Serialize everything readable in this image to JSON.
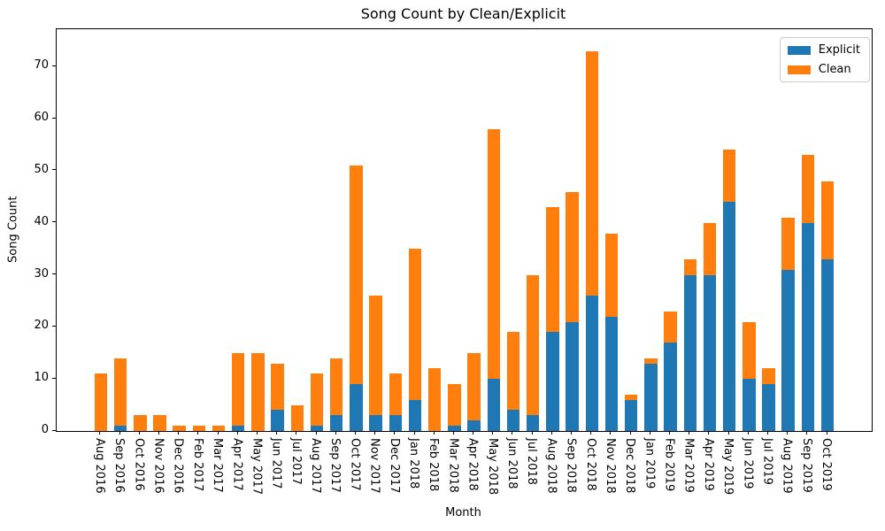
{
  "page": {
    "background": "#ffffff"
  },
  "chart_data": {
    "type": "bar",
    "stacked": true,
    "title": "Song Count by Clean/Explicit",
    "xlabel": "Month",
    "ylabel": "Song Count",
    "categories": [
      "Aug 2016",
      "Sep 2016",
      "Oct 2016",
      "Nov 2016",
      "Dec 2016",
      "Feb 2017",
      "Mar 2017",
      "Apr 2017",
      "May 2017",
      "Jun 2017",
      "Jul 2017",
      "Aug 2017",
      "Sep 2017",
      "Oct 2017",
      "Nov 2017",
      "Dec 2017",
      "Jan 2018",
      "Feb 2018",
      "Mar 2018",
      "Apr 2018",
      "May 2018",
      "Jun 2018",
      "Jul 2018",
      "Aug 2018",
      "Sep 2018",
      "Oct 2018",
      "Nov 2018",
      "Dec 2018",
      "Jan 2019",
      "Feb 2019",
      "Mar 2019",
      "Apr 2019",
      "May 2019",
      "Jun 2019",
      "Jul 2019",
      "Aug 2019",
      "Sep 2019",
      "Oct 2019"
    ],
    "series": [
      {
        "name": "Explicit",
        "color": "#1f77b4",
        "values": [
          0,
          1,
          0,
          0,
          0,
          0,
          0,
          1,
          0,
          4,
          0,
          1,
          3,
          9,
          3,
          3,
          6,
          0,
          1,
          2,
          10,
          4,
          3,
          19,
          21,
          26,
          22,
          6,
          13,
          17,
          30,
          30,
          44,
          10,
          9,
          31,
          40,
          33
        ]
      },
      {
        "name": "Clean",
        "color": "#ff7f0e",
        "values": [
          11,
          13,
          3,
          3,
          1,
          1,
          1,
          14,
          15,
          9,
          5,
          10,
          11,
          42,
          23,
          8,
          29,
          12,
          8,
          13,
          48,
          15,
          27,
          24,
          25,
          47,
          16,
          1,
          1,
          6,
          3,
          10,
          10,
          11,
          3,
          10,
          13,
          15
        ]
      }
    ],
    "totals": [
      11,
      14,
      3,
      3,
      1,
      1,
      1,
      15,
      15,
      13,
      5,
      11,
      14,
      51,
      26,
      11,
      35,
      12,
      9,
      15,
      58,
      19,
      30,
      43,
      46,
      73,
      38,
      7,
      14,
      23,
      33,
      40,
      54,
      21,
      12,
      41,
      53,
      48
    ],
    "yticks": [
      0,
      10,
      20,
      30,
      40,
      50,
      60,
      70
    ],
    "ylim": [
      0,
      77.2
    ],
    "xlim": [
      -2.25,
      39.25
    ],
    "bar_width": 0.65,
    "grid": false,
    "legend_position": "upper-right"
  }
}
